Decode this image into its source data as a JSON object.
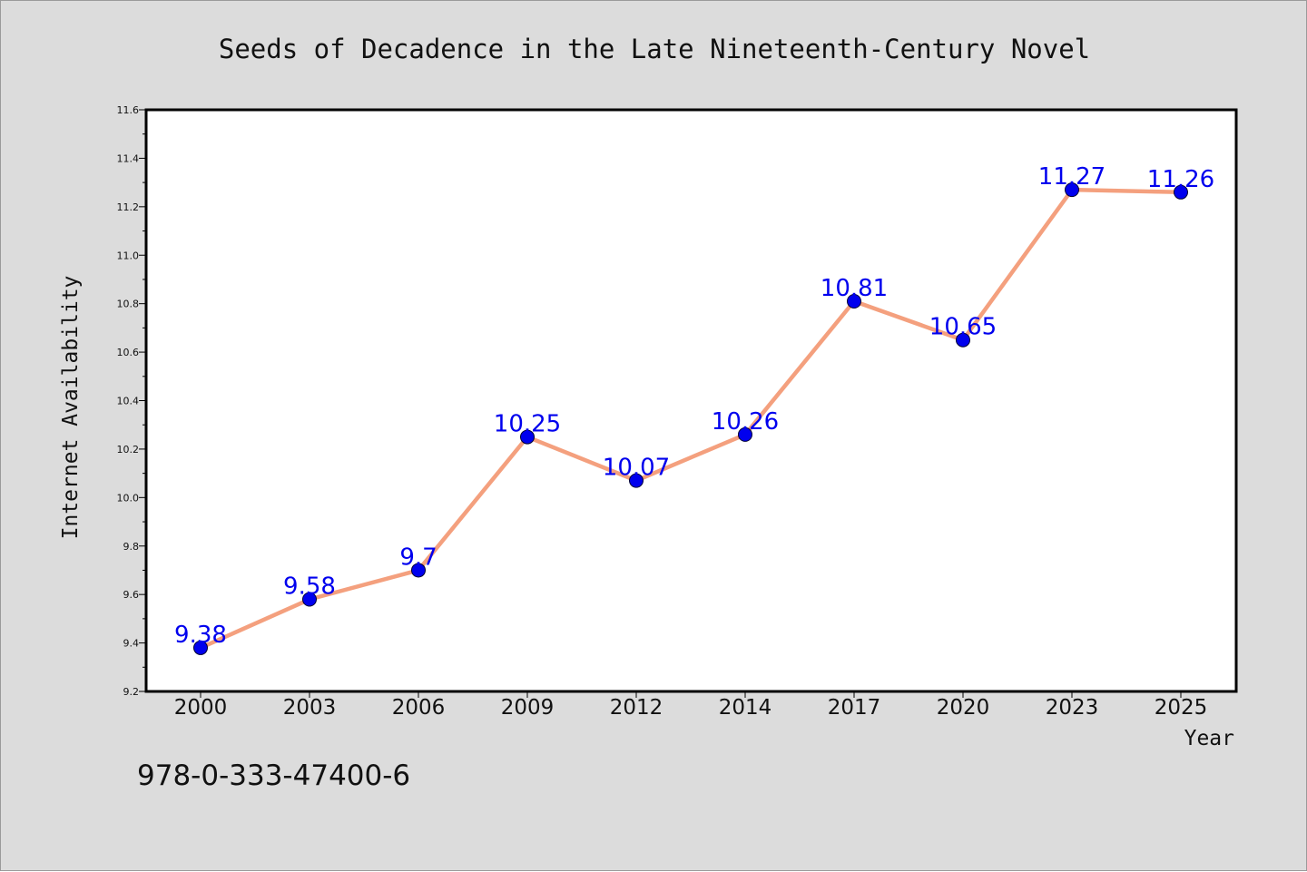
{
  "chart_data": {
    "type": "line",
    "title": "Seeds of Decadence in the Late Nineteenth-Century Novel",
    "xlabel": "Year",
    "ylabel": "Internet Availability",
    "categories": [
      "2000",
      "2003",
      "2006",
      "2009",
      "2012",
      "2014",
      "2017",
      "2020",
      "2023",
      "2025"
    ],
    "series": [
      {
        "values": [
          9.38,
          9.58,
          9.7,
          10.25,
          10.07,
          10.26,
          10.81,
          10.65,
          11.27,
          11.26
        ],
        "data_labels": [
          "9.38",
          "9.58",
          "9.7",
          "10.25",
          "10.07",
          "10.26",
          "10.81",
          "10.65",
          "11.27",
          "11.26"
        ],
        "line_color": "#f4a07e",
        "marker_color": "#0000ee",
        "label_color": "#0000ee"
      }
    ],
    "ylim": [
      9.2,
      11.6
    ],
    "y_ticks": [
      "9.2",
      "9.4",
      "9.6",
      "9.8",
      "10.0",
      "10.2",
      "10.4",
      "10.6",
      "10.8",
      "11.0",
      "11.2",
      "11.4",
      "11.6"
    ],
    "grid": false,
    "legend": "none"
  },
  "footer": {
    "isbn": "978-0-333-47400-6"
  },
  "colors": {
    "background": "#dcdcdc",
    "plot_background": "#ffffff"
  }
}
